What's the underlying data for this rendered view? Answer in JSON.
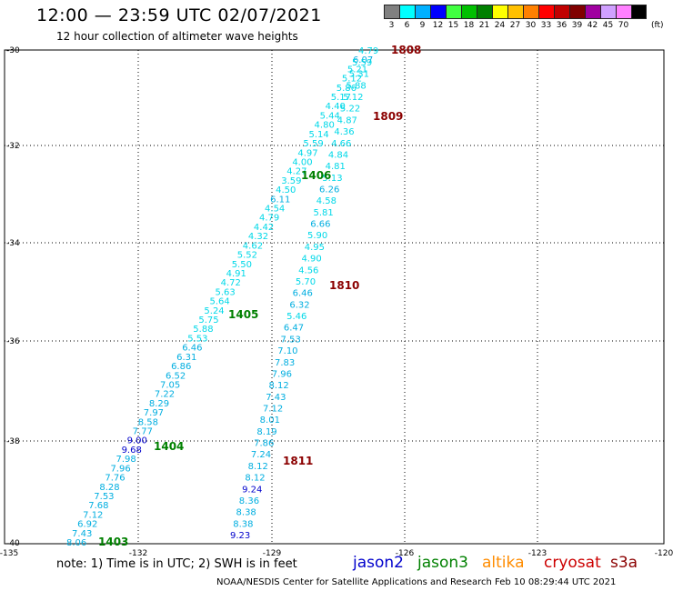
{
  "header": {
    "title": "12:00 — 23:59 UTC 02/07/2021",
    "subtitle": "12 hour collection of altimeter wave heights"
  },
  "legend": {
    "unit": "(ft)",
    "items": [
      {
        "label": "3",
        "color": "#808080"
      },
      {
        "label": "6",
        "color": "#00ffff"
      },
      {
        "label": "9",
        "color": "#00b0ff"
      },
      {
        "label": "12",
        "color": "#0000ff"
      },
      {
        "label": "15",
        "color": "#40ff40"
      },
      {
        "label": "18",
        "color": "#00c000"
      },
      {
        "label": "21",
        "color": "#008000"
      },
      {
        "label": "24",
        "color": "#ffff00"
      },
      {
        "label": "27",
        "color": "#ffc000"
      },
      {
        "label": "30",
        "color": "#ff8000"
      },
      {
        "label": "33",
        "color": "#ff0000"
      },
      {
        "label": "36",
        "color": "#c00000"
      },
      {
        "label": "39",
        "color": "#800000"
      },
      {
        "label": "42",
        "color": "#a000a0"
      },
      {
        "label": "45",
        "color": "#d0a0ff"
      },
      {
        "label": "70",
        "color": "#ff80ff"
      },
      {
        "label": "",
        "color": "#000000"
      }
    ]
  },
  "axes": {
    "lat_labels": [
      "-30",
      "-32",
      "-34",
      "-36",
      "-38",
      "-40"
    ],
    "lon_labels": [
      "-135",
      "-132",
      "-129",
      "-126",
      "-123",
      "-120"
    ]
  },
  "tracks": {
    "left": [
      "4.79",
      "6.07",
      "5.21",
      "5.12",
      "5.86",
      "5.17",
      "4.40",
      "5.44",
      "4.80",
      "5.14",
      "5.59",
      "4.97",
      "4.00",
      "4.27",
      "3.59",
      "4.50",
      "6.11",
      "4.54",
      "4.79",
      "4.42",
      "4.32",
      "4.62",
      "5.52",
      "5.50",
      "4.91",
      "4.72",
      "5.63",
      "5.64",
      "5.24",
      "5.75",
      "5.88",
      "5.53",
      "6.46",
      "6.31",
      "6.86",
      "6.52",
      "7.05",
      "7.22",
      "8.29",
      "7.97",
      "8.58",
      "7.77",
      "9.00",
      "9.68",
      "7.98",
      "7.96",
      "7.76",
      "8.28",
      "7.53",
      "7.68",
      "7.12",
      "6.92",
      "7.43",
      "8.06"
    ],
    "right": [
      "5.59",
      "5.31",
      "5.88",
      "5.12",
      "5.22",
      "4.87",
      "4.36",
      "4.66",
      "4.84",
      "4.81",
      "5.13",
      "6.26",
      "4.58",
      "5.81",
      "6.66",
      "5.90",
      "4.95",
      "4.90",
      "4.56",
      "5.70",
      "6.46",
      "6.32",
      "5.46",
      "6.47",
      "7.53",
      "7.10",
      "7.83",
      "7.96",
      "8.12",
      "7.43",
      "7.12",
      "8.01",
      "8.19",
      "7.86",
      "7.24",
      "8.12",
      "8.12",
      "9.24",
      "8.36",
      "8.38",
      "8.38",
      "9.23"
    ]
  },
  "track_times": [
    {
      "label": "1808",
      "color": "#8b0000"
    },
    {
      "label": "1809",
      "color": "#8b0000"
    },
    {
      "label": "1406",
      "color": "#008000"
    },
    {
      "label": "1810",
      "color": "#8b0000"
    },
    {
      "label": "1405",
      "color": "#008000"
    },
    {
      "label": "1404",
      "color": "#008000"
    },
    {
      "label": "1811",
      "color": "#8b0000"
    },
    {
      "label": "1403",
      "color": "#008000"
    }
  ],
  "footer": {
    "note": "note:  1) Time is in UTC;  2) SWH is in feet",
    "satellites": [
      {
        "name": "jason2",
        "color": "#0000cc"
      },
      {
        "name": "jason3",
        "color": "#008000"
      },
      {
        "name": "altika",
        "color": "#ff8c00"
      },
      {
        "name": "cryosat",
        "color": "#cc0000"
      },
      {
        "name": "s3a",
        "color": "#8b0000"
      }
    ],
    "credit": "NOAA/NESDIS Center for Satellite Applications and Research    Feb 10 08:29:44 UTC 2021"
  }
}
